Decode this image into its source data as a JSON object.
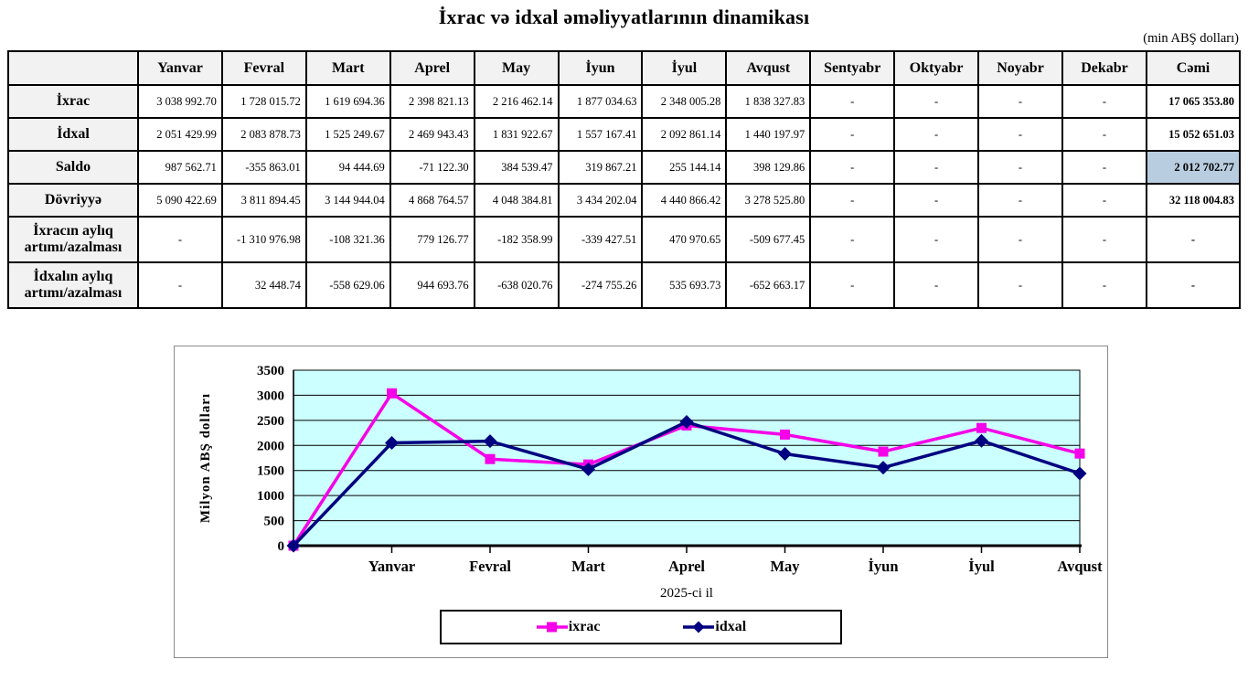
{
  "page": {
    "title": "İxrac və idxal əməliyyatlarının dinamikası",
    "unit_note": "(min ABŞ dolları)"
  },
  "table": {
    "highlight_bg": "#b9cde0",
    "columns": [
      "",
      "Yanvar",
      "Fevral",
      "Mart",
      "Aprel",
      "May",
      "İyun",
      "İyul",
      "Avqust",
      "Sentyabr",
      "Oktyabr",
      "Noyabr",
      "Dekabr",
      "Cəmi"
    ],
    "rows": [
      {
        "label": "İxrac",
        "tall": false,
        "highlight_total": false,
        "cells": [
          "3 038 992.70",
          "1 728 015.72",
          "1 619 694.36",
          "2 398 821.13",
          "2 216 462.14",
          "1 877 034.63",
          "2 348 005.28",
          "1 838 327.83",
          "-",
          "-",
          "-",
          "-",
          "17 065 353.80"
        ]
      },
      {
        "label": "İdxal",
        "tall": false,
        "highlight_total": false,
        "cells": [
          "2 051 429.99",
          "2 083 878.73",
          "1 525 249.67",
          "2 469 943.43",
          "1 831 922.67",
          "1 557 167.41",
          "2 092 861.14",
          "1 440 197.97",
          "-",
          "-",
          "-",
          "-",
          "15 052 651.03"
        ]
      },
      {
        "label": "Saldo",
        "tall": false,
        "highlight_total": true,
        "cells": [
          "987 562.71",
          "-355 863.01",
          "94 444.69",
          "-71 122.30",
          "384 539.47",
          "319 867.21",
          "255 144.14",
          "398 129.86",
          "-",
          "-",
          "-",
          "-",
          "2 012 702.77"
        ]
      },
      {
        "label": "Dövriyyə",
        "tall": false,
        "highlight_total": false,
        "cells": [
          "5 090 422.69",
          "3 811 894.45",
          "3 144 944.04",
          "4 868 764.57",
          "4 048 384.81",
          "3 434 202.04",
          "4 440 866.42",
          "3 278 525.80",
          "-",
          "-",
          "-",
          "-",
          "32 118 004.83"
        ]
      },
      {
        "label": "İxracın aylıq artımı/azalması",
        "tall": true,
        "highlight_total": false,
        "cells": [
          "-",
          "-1 310 976.98",
          "-108 321.36",
          "779 126.77",
          "-182 358.99",
          "-339 427.51",
          "470 970.65",
          "-509 677.45",
          "-",
          "-",
          "-",
          "-",
          "-"
        ]
      },
      {
        "label": "İdxalın aylıq artımı/azalması",
        "tall": true,
        "highlight_total": false,
        "cells": [
          "-",
          "32 448.74",
          "-558 629.06",
          "944 693.76",
          "-638 020.76",
          "-274 755.26",
          "535 693.73",
          "-652 663.17",
          "-",
          "-",
          "-",
          "-",
          "-"
        ]
      }
    ]
  },
  "chart_data": {
    "type": "line",
    "title": "",
    "xlabel": "2025-ci il",
    "ylabel": "Milyon ABŞ dolları",
    "categories": [
      "",
      "Yanvar",
      "Fevral",
      "Mart",
      "Aprel",
      "May",
      "İyun",
      "İyul",
      "Avqust"
    ],
    "series": [
      {
        "name": "ixrac",
        "color": "#f500e8",
        "marker": "square",
        "values": [
          0,
          3038.99,
          1728.02,
          1619.69,
          2398.82,
          2216.46,
          1877.03,
          2348.01,
          1838.33
        ]
      },
      {
        "name": "idxal",
        "color": "#000080",
        "marker": "diamond",
        "values": [
          0,
          2051.43,
          2083.88,
          1525.25,
          2469.94,
          1831.92,
          1557.17,
          2092.86,
          1440.2
        ]
      }
    ],
    "ylim": [
      0,
      3500
    ],
    "ytick_step": 500,
    "plot_bg": "#ccffff",
    "grid": true,
    "legend_position": "bottom"
  }
}
